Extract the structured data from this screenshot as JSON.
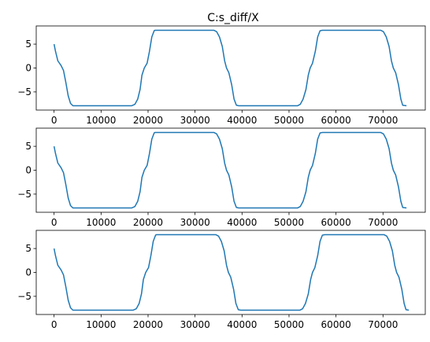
{
  "figure_title": "C:s_diff/X",
  "chart_data": [
    {
      "type": "line",
      "title": "C:s_diff/X",
      "xlabel": "",
      "ylabel": "",
      "xlim": [
        -3800,
        79000
      ],
      "ylim": [
        -8.8,
        8.8
      ],
      "xticks": [
        0,
        10000,
        20000,
        30000,
        40000,
        50000,
        60000,
        70000
      ],
      "yticks": [
        5,
        0,
        -5
      ],
      "grid": false,
      "series": [
        {
          "color": "#1f77b4",
          "x": [
            0,
            300,
            800,
            1500,
            2000,
            2500,
            3000,
            3500,
            4000,
            16500,
            17200,
            17800,
            18300,
            18700,
            19200,
            19800,
            20300,
            20800,
            21300,
            21500,
            34000,
            34600,
            35200,
            35800,
            36300,
            36700,
            37200,
            37800,
            38300,
            38800,
            39300,
            51800,
            52400,
            53000,
            53600,
            54100,
            54500,
            55000,
            55600,
            56100,
            56600,
            57100,
            69500,
            70100,
            70700,
            71300,
            71800,
            72200,
            72700,
            73300,
            73800,
            74200,
            75000
          ],
          "values": [
            5.0,
            3.5,
            1.5,
            0.5,
            -0.5,
            -3.0,
            -5.8,
            -7.4,
            -7.9,
            -7.9,
            -7.6,
            -6.5,
            -4.5,
            -1.5,
            0.0,
            1.0,
            3.5,
            6.5,
            7.8,
            7.9,
            7.9,
            7.6,
            6.5,
            4.5,
            1.5,
            0.0,
            -1.0,
            -3.5,
            -6.5,
            -7.8,
            -7.9,
            -7.9,
            -7.6,
            -6.5,
            -4.5,
            -1.5,
            0.0,
            1.0,
            3.5,
            6.5,
            7.8,
            7.9,
            7.9,
            7.6,
            6.5,
            4.5,
            1.5,
            0.0,
            -1.0,
            -3.5,
            -6.5,
            -7.8,
            -7.9
          ]
        }
      ]
    },
    {
      "type": "line",
      "title": "",
      "xlabel": "",
      "ylabel": "",
      "xlim": [
        -3800,
        79000
      ],
      "ylim": [
        -8.8,
        8.8
      ],
      "xticks": [
        0,
        10000,
        20000,
        30000,
        40000,
        50000,
        60000,
        70000
      ],
      "yticks": [
        5,
        0,
        -5
      ],
      "grid": false,
      "series": [
        {
          "color": "#1f77b4",
          "x": [
            0,
            300,
            800,
            1500,
            2000,
            2500,
            3000,
            3500,
            4000,
            16500,
            17200,
            17800,
            18300,
            18700,
            19200,
            19800,
            20300,
            20800,
            21300,
            21500,
            34000,
            34600,
            35200,
            35800,
            36300,
            36700,
            37200,
            37800,
            38300,
            38800,
            39300,
            51800,
            52400,
            53000,
            53600,
            54100,
            54500,
            55000,
            55600,
            56100,
            56600,
            57100,
            69500,
            70100,
            70700,
            71300,
            71800,
            72200,
            72700,
            73300,
            73800,
            74200,
            75000
          ],
          "values": [
            5.0,
            3.5,
            1.5,
            0.5,
            -0.5,
            -3.0,
            -5.8,
            -7.4,
            -7.9,
            -7.9,
            -7.6,
            -6.5,
            -4.5,
            -1.5,
            0.0,
            1.0,
            3.5,
            6.5,
            7.8,
            7.9,
            7.9,
            7.6,
            6.5,
            4.5,
            1.5,
            0.0,
            -1.0,
            -3.5,
            -6.5,
            -7.8,
            -7.9,
            -7.9,
            -7.6,
            -6.5,
            -4.5,
            -1.5,
            0.0,
            1.0,
            3.5,
            6.5,
            7.8,
            7.9,
            7.9,
            7.6,
            6.5,
            4.5,
            1.5,
            0.0,
            -1.0,
            -3.5,
            -6.5,
            -7.8,
            -7.9
          ]
        }
      ]
    },
    {
      "type": "line",
      "title": "",
      "xlabel": "",
      "ylabel": "",
      "xlim": [
        -3800,
        79000
      ],
      "ylim": [
        -8.8,
        8.8
      ],
      "xticks": [
        0,
        10000,
        20000,
        30000,
        40000,
        50000,
        60000,
        70000
      ],
      "yticks": [
        5,
        0,
        -5
      ],
      "grid": false,
      "series": [
        {
          "color": "#1f77b4",
          "x": [
            0,
            300,
            800,
            1500,
            2000,
            2500,
            3000,
            3500,
            4000,
            16800,
            17500,
            18100,
            18600,
            19000,
            19500,
            20100,
            20600,
            21100,
            21600,
            21800,
            34400,
            35000,
            35600,
            36200,
            36700,
            37100,
            37600,
            38200,
            38700,
            39200,
            39700,
            52300,
            52900,
            53500,
            54100,
            54600,
            55000,
            55500,
            56100,
            56600,
            57100,
            57600,
            70200,
            70800,
            71400,
            72000,
            72500,
            72900,
            73400,
            74000,
            74500,
            74900,
            75500
          ],
          "values": [
            5.0,
            3.5,
            1.5,
            0.5,
            -0.5,
            -3.0,
            -5.8,
            -7.4,
            -7.9,
            -7.9,
            -7.6,
            -6.5,
            -4.5,
            -1.5,
            0.0,
            1.0,
            3.5,
            6.5,
            7.8,
            7.9,
            7.9,
            7.6,
            6.5,
            4.5,
            1.5,
            0.0,
            -1.0,
            -3.5,
            -6.5,
            -7.8,
            -7.9,
            -7.9,
            -7.6,
            -6.5,
            -4.5,
            -1.5,
            0.0,
            1.0,
            3.5,
            6.5,
            7.8,
            7.9,
            7.9,
            7.6,
            6.5,
            4.5,
            1.5,
            0.0,
            -1.0,
            -3.5,
            -6.5,
            -7.8,
            -7.9
          ]
        }
      ]
    }
  ]
}
